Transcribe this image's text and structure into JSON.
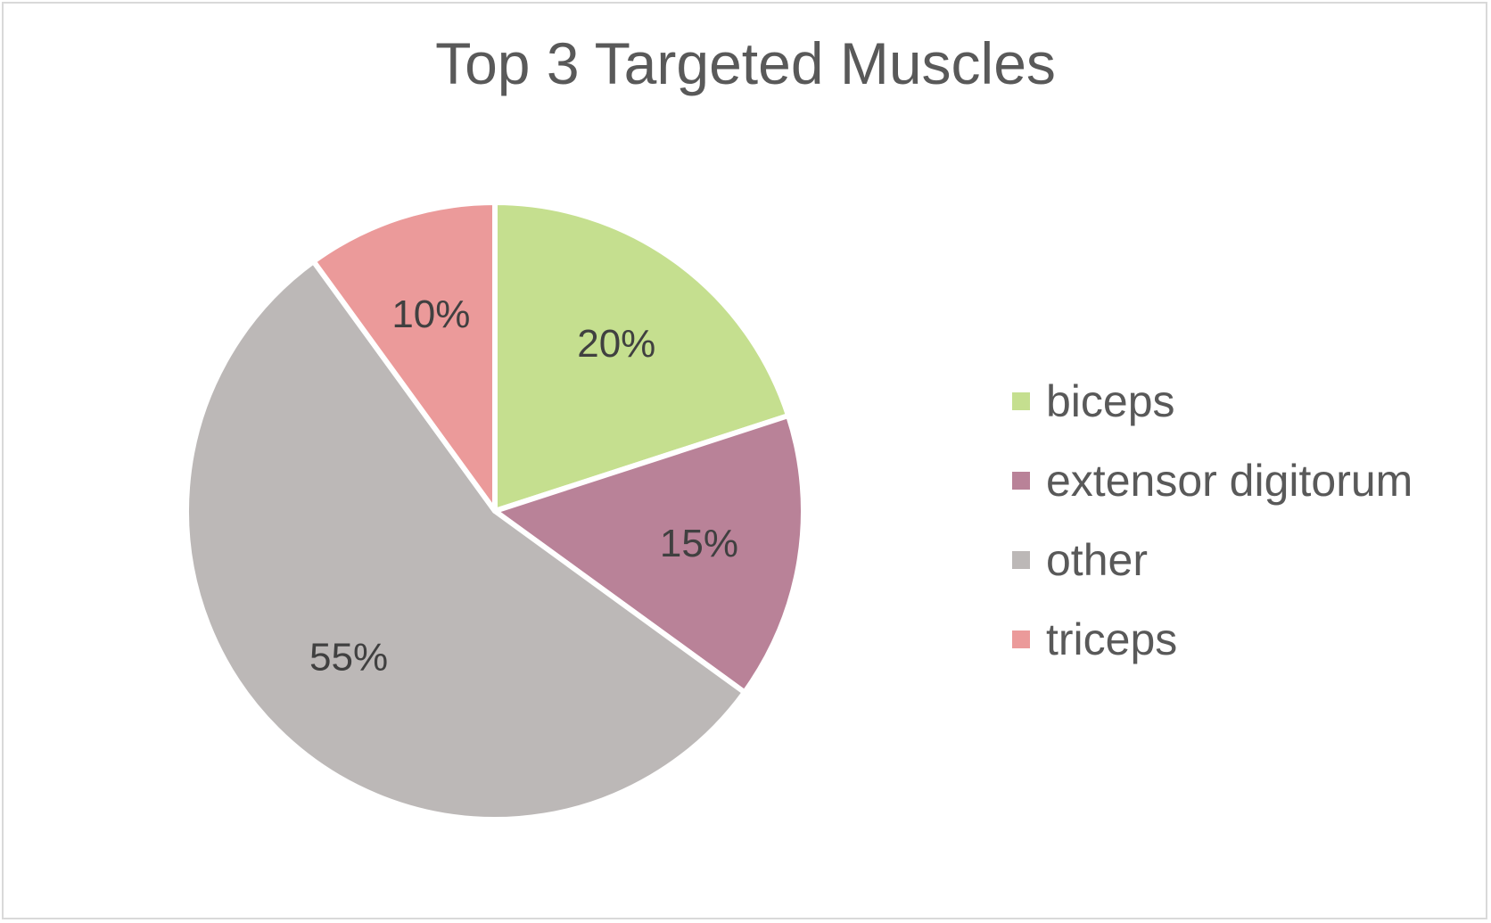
{
  "chart_data": {
    "type": "pie",
    "title": "Top 3 Targeted Muscles",
    "legend_position": "right",
    "slices": [
      {
        "name": "biceps",
        "value": 20,
        "label": "20%",
        "color": "#c5df8f"
      },
      {
        "name": "extensor digitorum",
        "value": 15,
        "label": "15%",
        "color": "#b98298"
      },
      {
        "name": "other",
        "value": 55,
        "label": "55%",
        "color": "#bcb8b7"
      },
      {
        "name": "triceps",
        "value": 10,
        "label": "10%",
        "color": "#eb9a9a"
      }
    ]
  }
}
